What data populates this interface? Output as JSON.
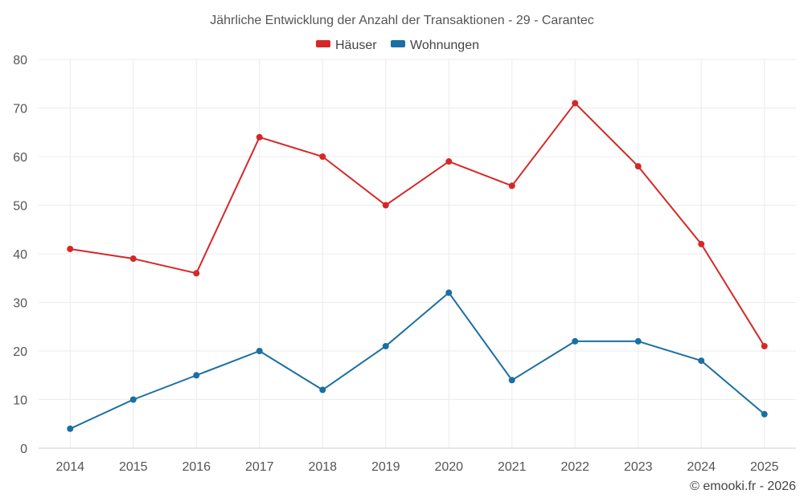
{
  "chart_data": {
    "type": "line",
    "title": "Jährliche Entwicklung der Anzahl der Transaktionen - 29 - Carantec",
    "categories": [
      "2014",
      "2015",
      "2016",
      "2017",
      "2018",
      "2019",
      "2020",
      "2021",
      "2022",
      "2023",
      "2024",
      "2025"
    ],
    "series": [
      {
        "name": "Häuser",
        "color": "#d62728",
        "values": [
          41,
          39,
          36,
          64,
          60,
          50,
          59,
          54,
          71,
          58,
          42,
          21
        ]
      },
      {
        "name": "Wohnungen",
        "color": "#1a6fa3",
        "values": [
          4,
          10,
          15,
          20,
          12,
          21,
          32,
          14,
          22,
          22,
          18,
          7
        ]
      }
    ],
    "ylim": [
      0,
      80
    ],
    "yticks": [
      0,
      10,
      20,
      30,
      40,
      50,
      60,
      70,
      80
    ],
    "xlabel": "",
    "ylabel": "",
    "grid": true,
    "legend": "top-center"
  },
  "footer": "© emooki.fr - 2026"
}
